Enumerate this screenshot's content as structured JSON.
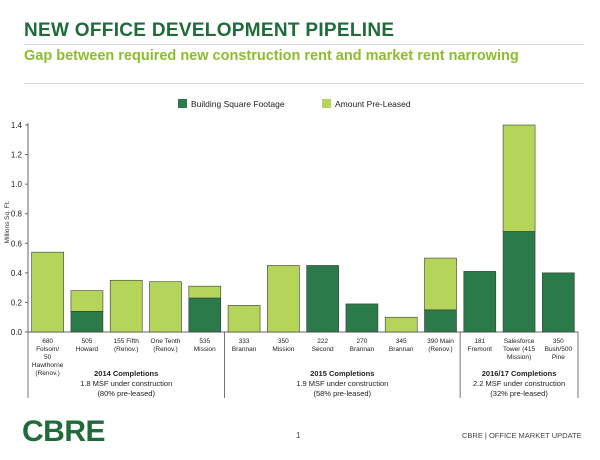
{
  "title": "NEW OFFICE DEVELOPMENT PIPELINE",
  "subtitle": "Gap between required new construction rent and market rent narrowing",
  "colors": {
    "dark_green": "#2a7a4a",
    "light_green": "#b5d55a",
    "title_green": "#1f6b3a",
    "subtitle_green": "#8dbd2c"
  },
  "chart_data": {
    "type": "bar",
    "stacked": true,
    "ylabel": "Millions Sq. Ft.",
    "ylim": [
      0,
      1.4
    ],
    "yticks": [
      "0.0",
      "0.2",
      "0.4",
      "0.6",
      "0.8",
      "1.0",
      "1.2",
      "1.4"
    ],
    "legend": [
      {
        "name": "Building Square Footage",
        "color": "#2a7a4a"
      },
      {
        "name": "Amount Pre-Leased",
        "color": "#b5d55a"
      }
    ],
    "categories": [
      [
        "680",
        "Folsom/",
        "50",
        "Hawthorne",
        "(Renov.)"
      ],
      [
        "505",
        "Howard"
      ],
      [
        "155 Fifth",
        "(Renov.)"
      ],
      [
        "One Tenth",
        "(Renov.)"
      ],
      [
        "535",
        "Mission"
      ],
      [
        "333",
        "Brannan"
      ],
      [
        "350",
        "Mission"
      ],
      [
        "222",
        "Second"
      ],
      [
        "270",
        "Brannan"
      ],
      [
        "345",
        "Brannan"
      ],
      [
        "390 Main",
        "(Renov.)"
      ],
      [
        "181",
        "Fremont"
      ],
      [
        "Salesforce",
        "Tower (415",
        "Mission)"
      ],
      [
        "350",
        "Bush/500",
        "Pine"
      ]
    ],
    "series": [
      {
        "name": "Building Square Footage",
        "values": [
          0,
          0.14,
          0,
          0,
          0.23,
          0,
          0,
          0.45,
          0.19,
          0,
          0.15,
          0.41,
          0.68,
          0.4
        ]
      },
      {
        "name": "Amount Pre-Leased",
        "values": [
          0.54,
          0.14,
          0.35,
          0.34,
          0.08,
          0.18,
          0.45,
          0,
          0,
          0.1,
          0.35,
          0,
          0.72,
          0
        ]
      }
    ],
    "groups": [
      {
        "title": "2014 Completions",
        "lines": [
          "1.8 MSF under construction",
          "(80% pre-leased)"
        ],
        "start": 0,
        "end": 4
      },
      {
        "title": "2015 Completions",
        "lines": [
          "1.9 MSF under construction",
          "(58% pre-leased)"
        ],
        "start": 5,
        "end": 10
      },
      {
        "title": "2016/17 Completions",
        "lines": [
          "2.2 MSF under construction",
          "(32% pre-leased)"
        ],
        "start": 11,
        "end": 13
      }
    ]
  },
  "footer": {
    "logo": "CBRE",
    "page_number": "1",
    "tagline": "CBRE  |  OFFICE MARKET UPDATE"
  }
}
